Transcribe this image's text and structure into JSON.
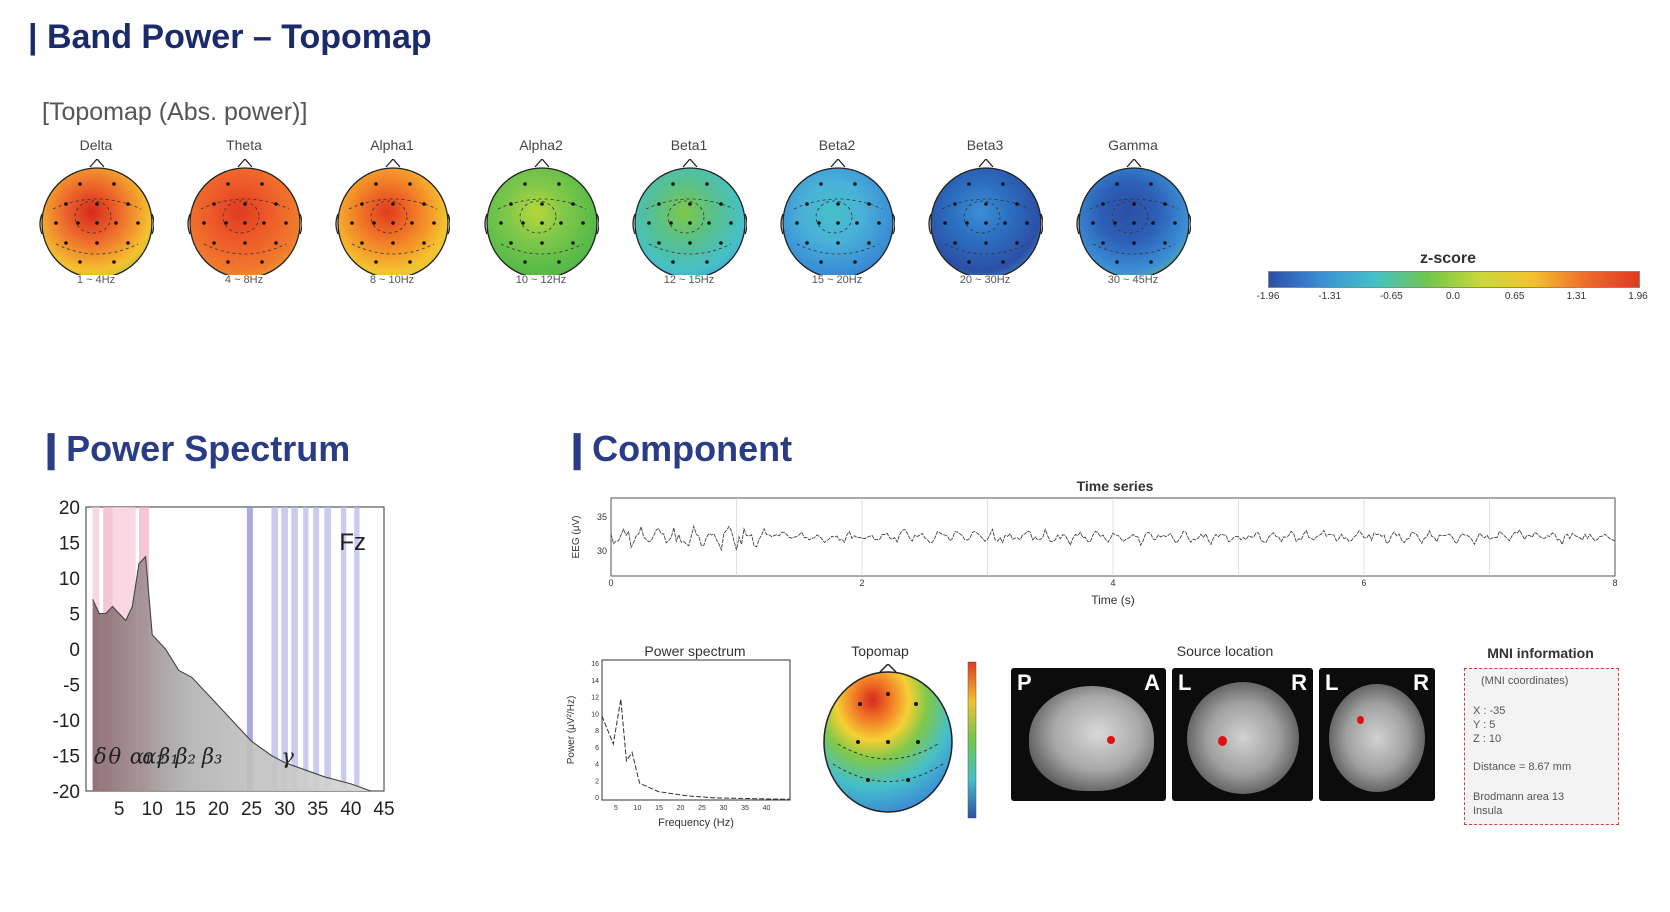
{
  "header": {
    "title": "| Band Power – Topomap",
    "subtitle": "[Topomap (Abs. power)]"
  },
  "topomaps": [
    {
      "name": "Delta",
      "band": "1 ~ 4Hz"
    },
    {
      "name": "Theta",
      "band": "4 ~ 8Hz"
    },
    {
      "name": "Alpha1",
      "band": "8 ~ 10Hz"
    },
    {
      "name": "Alpha2",
      "band": "10 ~ 12Hz"
    },
    {
      "name": "Beta1",
      "band": "12 ~ 15Hz"
    },
    {
      "name": "Beta2",
      "band": "15 ~ 20Hz"
    },
    {
      "name": "Beta3",
      "band": "20 ~ 30Hz"
    },
    {
      "name": "Gamma",
      "band": "30 ~ 45Hz"
    }
  ],
  "colorbar": {
    "title": "z-score",
    "ticks": [
      "-1.96",
      "-1.31",
      "-0.65",
      "0.0",
      "0.65",
      "1.31",
      "1.96"
    ],
    "colors": [
      "#2c4fa6",
      "#46c0c8",
      "#6fc64d",
      "#f4c12e",
      "#e03a20"
    ]
  },
  "power_spectrum": {
    "title": "Power Spectrum",
    "channel": "Fz",
    "bands": [
      "δ",
      "θ",
      "α₁",
      "α₂",
      "β₁",
      "β₂",
      "β₃",
      "γ"
    ],
    "chart_data": {
      "type": "area",
      "x": [
        1,
        2,
        3,
        4,
        5,
        6,
        7,
        8,
        9,
        10,
        12,
        14,
        16,
        18,
        20,
        22,
        24,
        25,
        28,
        30,
        33,
        36,
        40,
        43
      ],
      "y": [
        7,
        5,
        5,
        6,
        5,
        4,
        6,
        12,
        13,
        2,
        0,
        -3,
        -4,
        -6,
        -8,
        -10,
        -12,
        -13,
        -15,
        -16,
        -17,
        -18,
        -19,
        -20
      ],
      "xticks": [
        5,
        10,
        15,
        20,
        25,
        30,
        35,
        40,
        45
      ],
      "yticks": [
        20,
        15,
        10,
        5,
        0,
        -5,
        -10,
        -15,
        -20
      ],
      "xlim": [
        0,
        45
      ],
      "ylim": [
        -20,
        20
      ]
    }
  },
  "component": {
    "title": "Component",
    "time_series": {
      "title": "Time series",
      "xlabel": "Time (s)",
      "ylabel": "EEG (μV)",
      "xticks": [
        "0",
        "2",
        "4",
        "6",
        "8"
      ],
      "yticks": [
        "35",
        "30"
      ]
    },
    "spectrum": {
      "title": "Power spectrum",
      "xlabel": "Frequency (Hz)",
      "ylabel": "Power (μV²/Hz)",
      "xticks": [
        "5",
        "10",
        "15",
        "20",
        "25",
        "30",
        "35",
        "40"
      ],
      "yticks": [
        "16",
        "14",
        "12",
        "10",
        "8",
        "6",
        "4",
        "2",
        "0"
      ]
    },
    "topomap": {
      "title": "Topomap"
    },
    "source": {
      "title": "Source location",
      "labels": [
        "P",
        "A",
        "L",
        "R",
        "L",
        "R"
      ]
    },
    "mni": {
      "title": "MNI information",
      "coords_label": "(MNI coordinates)",
      "x": "X : -35",
      "y": "Y : 5",
      "z": "Z : 10",
      "distance": "Distance = 8.67 mm",
      "area": "Brodmann area 13",
      "region": "Insula"
    }
  }
}
